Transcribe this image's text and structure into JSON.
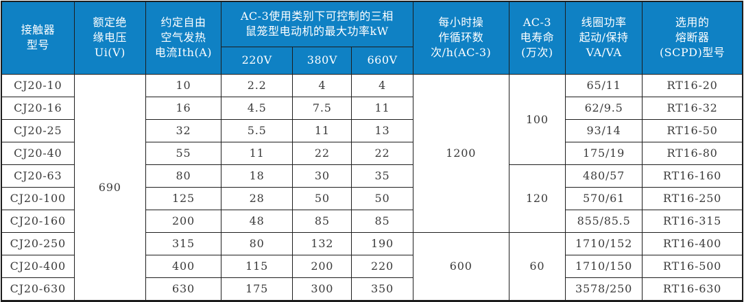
{
  "colors": {
    "header_bg": "#0f81c4",
    "header_text": "#ffffff",
    "body_text": "#3a3a3a",
    "border": "#1c1c1c"
  },
  "header": {
    "model": "接触器\n型号",
    "insulation_voltage": "额定绝\n缘电压\nUi(V)",
    "thermal_current": "约定自由\n空气发热\n电流Ith(A)",
    "max_power_group": "AC-3使用类别下可控制的三相\n鼠笼型电动机的最大功率kW",
    "voltage_cols": [
      "220V",
      "380V",
      "660V"
    ],
    "cycles_per_hour": "每小时操\n作循环数\n次/h(AC-3)",
    "electrical_life": "AC-3\n电寿命\n(万次)",
    "coil_power": "线圈功率\n起动/保持\nVA/VA",
    "fuse": "选用的\n熔断器\n(SCPD)型号"
  },
  "spans": {
    "insulation_voltage_all_rows": "690",
    "cycles_rows_1_7": "1200",
    "cycles_rows_8_10": "600",
    "life_rows_1_4": "100",
    "life_rows_5_7": "120",
    "life_rows_8_10": "60"
  },
  "rows": [
    {
      "model": "CJ20-10",
      "ith": "10",
      "kw_220": "2.2",
      "kw_380": "4",
      "kw_660": "4",
      "coil": "65/11",
      "fuse": "RT16-20"
    },
    {
      "model": "CJ20-16",
      "ith": "16",
      "kw_220": "4.5",
      "kw_380": "7.5",
      "kw_660": "11",
      "coil": "62/9.5",
      "fuse": "RT16-32"
    },
    {
      "model": "CJ20-25",
      "ith": "32",
      "kw_220": "5.5",
      "kw_380": "11",
      "kw_660": "13",
      "coil": "93/14",
      "fuse": "RT16-50"
    },
    {
      "model": "CJ20-40",
      "ith": "55",
      "kw_220": "11",
      "kw_380": "22",
      "kw_660": "22",
      "coil": "175/19",
      "fuse": "RT16-80"
    },
    {
      "model": "CJ20-63",
      "ith": "80",
      "kw_220": "18",
      "kw_380": "30",
      "kw_660": "35",
      "coil": "480/57",
      "fuse": "RT16-160"
    },
    {
      "model": "CJ20-100",
      "ith": "125",
      "kw_220": "28",
      "kw_380": "50",
      "kw_660": "50",
      "coil": "570/61",
      "fuse": "RT16-250"
    },
    {
      "model": "CJ20-160",
      "ith": "200",
      "kw_220": "48",
      "kw_380": "85",
      "kw_660": "85",
      "coil": "855/85.5",
      "fuse": "RT16-315"
    },
    {
      "model": "CJ20-250",
      "ith": "315",
      "kw_220": "80",
      "kw_380": "132",
      "kw_660": "190",
      "coil": "1710/152",
      "fuse": "RT16-400"
    },
    {
      "model": "CJ20-400",
      "ith": "400",
      "kw_220": "115",
      "kw_380": "200",
      "kw_660": "220",
      "coil": "1710/150",
      "fuse": "RT16-500"
    },
    {
      "model": "CJ20-630",
      "ith": "630",
      "kw_220": "175",
      "kw_380": "300",
      "kw_660": "350",
      "coil": "3578/250",
      "fuse": "RT16-630"
    }
  ]
}
